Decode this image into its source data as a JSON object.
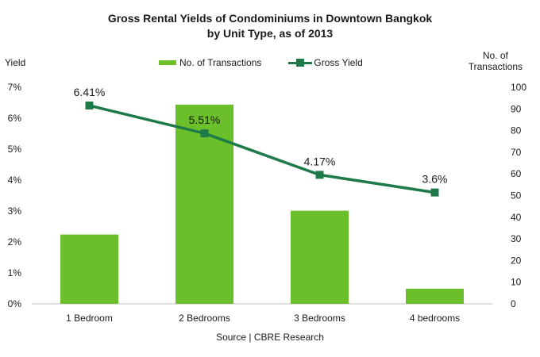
{
  "chart_data": {
    "type": "bar+line",
    "title_line1": "Gross Rental Yields of Condominiums in Downtown Bangkok",
    "title_line2": "by Unit Type, as of 2013",
    "categories": [
      "1 Bedroom",
      "2 Bedrooms",
      "3 Bedrooms",
      "4 bedrooms"
    ],
    "bar_series": {
      "name": "No. of Transactions",
      "values": [
        32,
        92,
        43,
        7
      ],
      "axis": "right",
      "color": "#6abf2a"
    },
    "line_series": {
      "name": "Gross Yield",
      "values": [
        6.41,
        5.51,
        4.17,
        3.6
      ],
      "labels": [
        "6.41%",
        "5.51%",
        "4.17%",
        "3.6%"
      ],
      "axis": "left",
      "color": "#1f7a4a"
    },
    "left_axis": {
      "label": "Yield",
      "ylim": [
        0,
        7
      ],
      "ticks": [
        "0%",
        "1%",
        "2%",
        "3%",
        "4%",
        "5%",
        "6%",
        "7%"
      ]
    },
    "right_axis": {
      "label_line1": "No. of",
      "label_line2": "Transactions",
      "ylim": [
        0,
        100
      ],
      "ticks": [
        "0",
        "10",
        "20",
        "30",
        "40",
        "50",
        "60",
        "70",
        "80",
        "90",
        "100"
      ]
    },
    "legend_position": "top-center",
    "grid": false,
    "source": "Source | CBRE Research"
  }
}
